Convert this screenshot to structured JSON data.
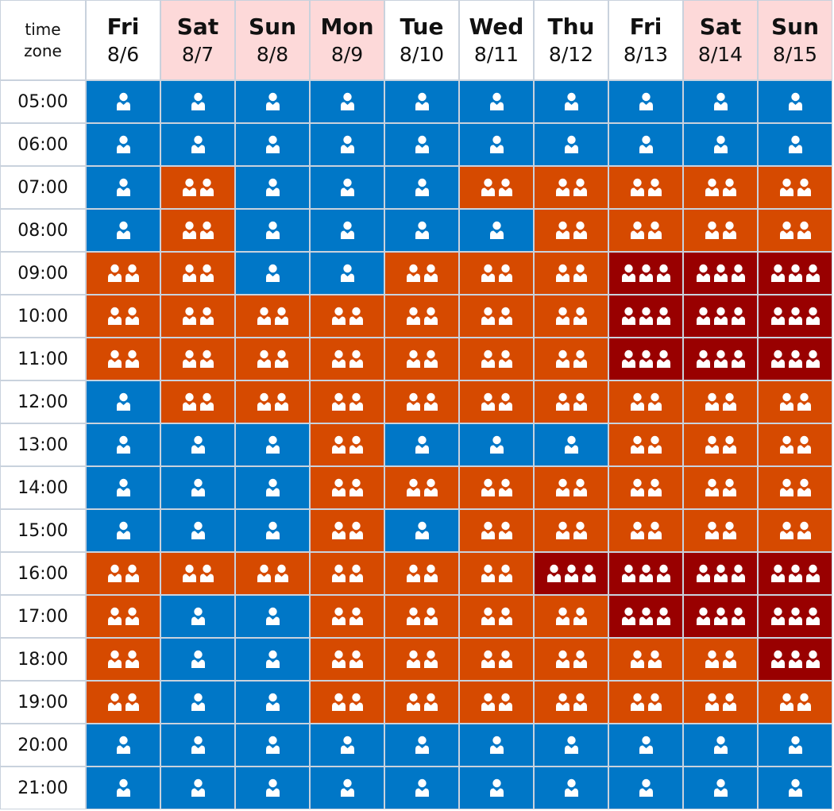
{
  "chart_data": {
    "type": "heatmap",
    "title": "",
    "corner_label": [
      "time",
      "zone"
    ],
    "columns": [
      {
        "dow": "Fri",
        "date": "8/6",
        "weekend": false
      },
      {
        "dow": "Sat",
        "date": "8/7",
        "weekend": true
      },
      {
        "dow": "Sun",
        "date": "8/8",
        "weekend": true
      },
      {
        "dow": "Mon",
        "date": "8/9",
        "weekend": true
      },
      {
        "dow": "Tue",
        "date": "8/10",
        "weekend": false
      },
      {
        "dow": "Wed",
        "date": "8/11",
        "weekend": false
      },
      {
        "dow": "Thu",
        "date": "8/12",
        "weekend": false
      },
      {
        "dow": "Fri",
        "date": "8/13",
        "weekend": false
      },
      {
        "dow": "Sat",
        "date": "8/14",
        "weekend": true
      },
      {
        "dow": "Sun",
        "date": "8/15",
        "weekend": true
      }
    ],
    "rows": [
      "05:00",
      "06:00",
      "07:00",
      "08:00",
      "09:00",
      "10:00",
      "11:00",
      "12:00",
      "13:00",
      "14:00",
      "15:00",
      "16:00",
      "17:00",
      "18:00",
      "19:00",
      "20:00",
      "21:00"
    ],
    "levels": [
      [
        1,
        1,
        1,
        1,
        1,
        1,
        1,
        1,
        1,
        1
      ],
      [
        1,
        1,
        1,
        1,
        1,
        1,
        1,
        1,
        1,
        1
      ],
      [
        1,
        2,
        1,
        1,
        1,
        2,
        2,
        2,
        2,
        2
      ],
      [
        1,
        2,
        1,
        1,
        1,
        1,
        2,
        2,
        2,
        2
      ],
      [
        2,
        2,
        1,
        1,
        2,
        2,
        2,
        3,
        3,
        3
      ],
      [
        2,
        2,
        2,
        2,
        2,
        2,
        2,
        3,
        3,
        3
      ],
      [
        2,
        2,
        2,
        2,
        2,
        2,
        2,
        3,
        3,
        3
      ],
      [
        1,
        2,
        2,
        2,
        2,
        2,
        2,
        2,
        2,
        2
      ],
      [
        1,
        1,
        1,
        2,
        1,
        1,
        1,
        2,
        2,
        2
      ],
      [
        1,
        1,
        1,
        2,
        2,
        2,
        2,
        2,
        2,
        2
      ],
      [
        1,
        1,
        1,
        2,
        1,
        2,
        2,
        2,
        2,
        2
      ],
      [
        2,
        2,
        2,
        2,
        2,
        2,
        3,
        3,
        3,
        3
      ],
      [
        2,
        1,
        1,
        2,
        2,
        2,
        2,
        3,
        3,
        3
      ],
      [
        2,
        1,
        1,
        2,
        2,
        2,
        2,
        2,
        2,
        3
      ],
      [
        2,
        1,
        1,
        2,
        2,
        2,
        2,
        2,
        2,
        2
      ],
      [
        1,
        1,
        1,
        1,
        1,
        1,
        1,
        1,
        1,
        1
      ],
      [
        1,
        1,
        1,
        1,
        1,
        1,
        1,
        1,
        1,
        1
      ]
    ],
    "level_colors": {
      "1": "#0077c7",
      "2": "#d64a00",
      "3": "#990000"
    },
    "icon": "person-icon"
  }
}
